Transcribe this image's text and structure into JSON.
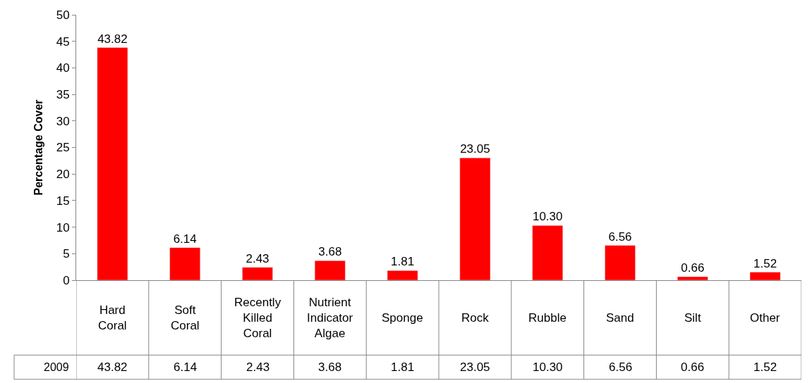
{
  "chart_data": {
    "type": "bar",
    "ylabel": "Percentage Cover",
    "categories": [
      "Hard Coral",
      "Soft Coral",
      "Recently Killed Coral",
      "Nutrient Indicator Algae",
      "Sponge",
      "Rock",
      "Rubble",
      "Sand",
      "Silt",
      "Other"
    ],
    "series": [
      {
        "name": "2009",
        "color": "#ff0000",
        "values": [
          43.82,
          6.14,
          2.43,
          3.68,
          1.81,
          23.05,
          10.3,
          6.56,
          0.66,
          1.52
        ]
      }
    ],
    "value_labels": [
      "43.82",
      "6.14",
      "2.43",
      "3.68",
      "1.81",
      "23.05",
      "10.30",
      "6.56",
      "0.66",
      "1.52"
    ],
    "ylim": [
      0,
      50
    ],
    "yticks": [
      0,
      5,
      10,
      15,
      20,
      25,
      30,
      35,
      40,
      45,
      50
    ],
    "legend": false
  }
}
